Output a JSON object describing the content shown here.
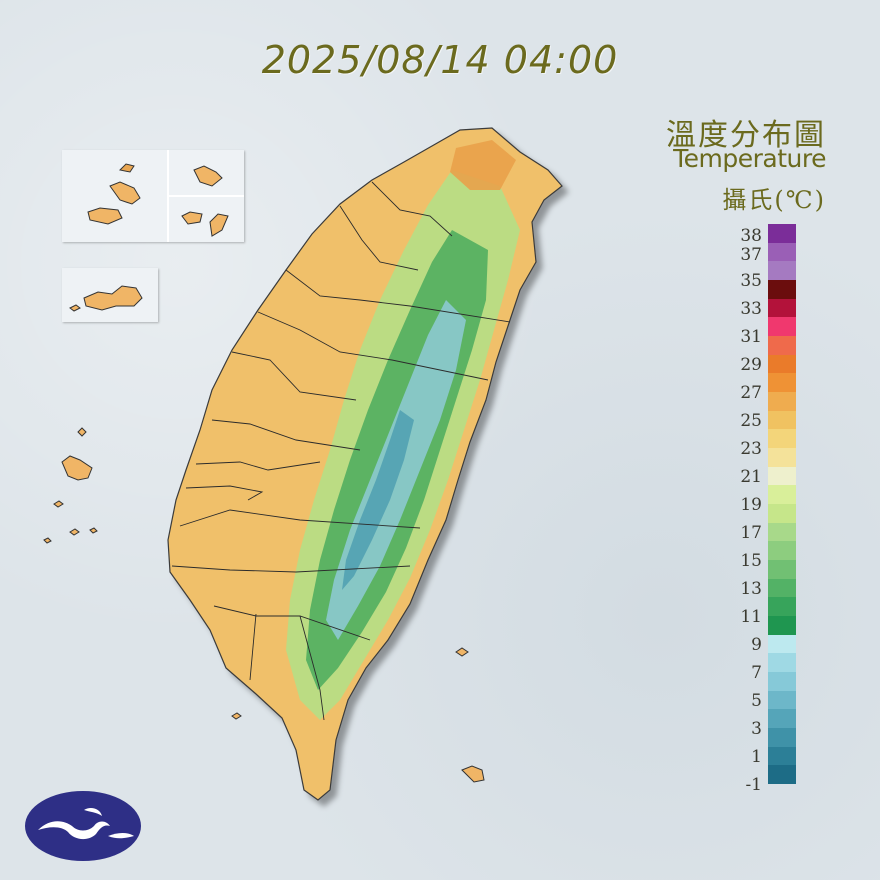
{
  "header": {
    "timestamp": "2025/08/14 04:00"
  },
  "legend": {
    "title_zh": "溫度分布圖",
    "title_en": "Temperature",
    "unit": "攝氏(℃)",
    "ticks": [
      "38",
      "37",
      "35",
      "33",
      "31",
      "29",
      "27",
      "25",
      "23",
      "21",
      "19",
      "17",
      "15",
      "13",
      "11",
      "9",
      "7",
      "5",
      "3",
      "1",
      "-1"
    ],
    "colors": [
      "#7b2d99",
      "#9a5fb6",
      "#a57ac1",
      "#6b0d0d",
      "#b3123a",
      "#f0386e",
      "#ef6a4b",
      "#ea7b2a",
      "#ef9235",
      "#efac4f",
      "#f0c261",
      "#f3d57a",
      "#f4e29a",
      "#eef0cd",
      "#d9ef9a",
      "#c6e68a",
      "#a8d98a",
      "#8dcd7f",
      "#71c073",
      "#53b266",
      "#37a45b",
      "#1f9650",
      "#bde9ef",
      "#9fd9e4",
      "#86c9d8",
      "#6db7c9",
      "#55a5b9",
      "#3f92a8",
      "#2c7f97",
      "#1d6c86"
    ]
  },
  "map": {
    "region": "Taiwan",
    "lowland_color": "#f0c06a",
    "coast_color": "#e9a94c",
    "mountain_low_color": "#9fd27f",
    "mountain_mid_color": "#4fae5f",
    "peak_color": "#7ec8d0"
  },
  "logo": {
    "icon": "cwa-logo-icon",
    "color": "#2e2f86"
  }
}
